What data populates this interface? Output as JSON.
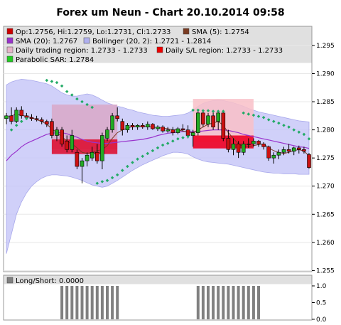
{
  "chart_data": {
    "type": "candlestick",
    "title": "Forex um Neun - Chart 20.10.2014 09:58",
    "legend": {
      "placement": "top",
      "entries": [
        {
          "label": "Op:1.2756, Hi:1.2759, Lo:1.2731, Cl:1.2733",
          "color": "#cc0000"
        },
        {
          "label": "SMA (5): 1.2754",
          "color": "#7a3b22"
        },
        {
          "label": "SMA (20): 1.2767",
          "color": "#9933cc"
        },
        {
          "label": "Bollinger (20, 2): 1.2721 - 1.2814",
          "color": "#b0b0f0"
        },
        {
          "label": "Daily trading region: 1.2733 - 1.2733",
          "color": "#e6b4c8"
        },
        {
          "label": "Daily S/L region: 1.2733 - 1.2733",
          "color": "#ee0000"
        },
        {
          "label": "Parabolic SAR: 1.2784",
          "color": "#22cc22"
        }
      ]
    },
    "y_axis": {
      "range": [
        1.2548,
        1.2984
      ],
      "ticks": [
        "1.295",
        "1.290",
        "1.285",
        "1.280",
        "1.275",
        "1.270",
        "1.265",
        "1.260",
        "1.255"
      ]
    },
    "regions": {
      "trading": [
        {
          "x_start": 9,
          "x_end": 22,
          "low": 1.2766,
          "high": 1.2845,
          "color": "#d9a8c8"
        },
        {
          "x_start": 37,
          "x_end": 49,
          "low": 1.2778,
          "high": 1.2855,
          "color": "#f9c0c8"
        }
      ],
      "stoploss": [
        {
          "x_start": 9,
          "x_end": 22,
          "low": 1.2757,
          "high": 1.2783,
          "color": "#dd1133"
        },
        {
          "x_start": 37,
          "x_end": 49,
          "low": 1.2767,
          "high": 1.279,
          "color": "#ee0022"
        }
      ]
    },
    "candles": [
      [
        1.282,
        1.283,
        1.281,
        1.2825
      ],
      [
        1.2825,
        1.284,
        1.281,
        1.2815
      ],
      [
        1.2815,
        1.284,
        1.2812,
        1.2835
      ],
      [
        1.2835,
        1.2842,
        1.282,
        1.2825
      ],
      [
        1.2825,
        1.283,
        1.2818,
        1.2822
      ],
      [
        1.2822,
        1.2828,
        1.2816,
        1.282
      ],
      [
        1.282,
        1.2825,
        1.2815,
        1.2818
      ],
      [
        1.2818,
        1.2822,
        1.281,
        1.2815
      ],
      [
        1.2815,
        1.2818,
        1.2805,
        1.281
      ],
      [
        1.2815,
        1.282,
        1.2785,
        1.279
      ],
      [
        1.279,
        1.2805,
        1.278,
        1.28
      ],
      [
        1.28,
        1.2805,
        1.277,
        1.2775
      ],
      [
        1.278,
        1.279,
        1.276,
        1.2765
      ],
      [
        1.2765,
        1.28,
        1.276,
        1.279
      ],
      [
        1.276,
        1.2765,
        1.273,
        1.2735
      ],
      [
        1.2735,
        1.275,
        1.2705,
        1.2745
      ],
      [
        1.2745,
        1.276,
        1.2735,
        1.2755
      ],
      [
        1.275,
        1.277,
        1.2745,
        1.276
      ],
      [
        1.276,
        1.2775,
        1.274,
        1.2745
      ],
      [
        1.2745,
        1.2795,
        1.273,
        1.279
      ],
      [
        1.2785,
        1.2805,
        1.278,
        1.28
      ],
      [
        1.28,
        1.283,
        1.2795,
        1.2825
      ],
      [
        1.2825,
        1.284,
        1.2815,
        1.282
      ],
      [
        1.2815,
        1.282,
        1.279,
        1.28
      ],
      [
        1.28,
        1.2812,
        1.2795,
        1.2808
      ],
      [
        1.2808,
        1.2812,
        1.28,
        1.2805
      ],
      [
        1.2805,
        1.281,
        1.28,
        1.2808
      ],
      [
        1.2808,
        1.2812,
        1.2802,
        1.2805
      ],
      [
        1.2805,
        1.2815,
        1.28,
        1.281
      ],
      [
        1.281,
        1.2812,
        1.28,
        1.2802
      ],
      [
        1.2802,
        1.2808,
        1.2798,
        1.2805
      ],
      [
        1.2805,
        1.2808,
        1.2795,
        1.2798
      ],
      [
        1.2798,
        1.2805,
        1.2795,
        1.28
      ],
      [
        1.28,
        1.2805,
        1.279,
        1.2795
      ],
      [
        1.2795,
        1.2805,
        1.2792,
        1.2802
      ],
      [
        1.2802,
        1.281,
        1.2798,
        1.28
      ],
      [
        1.28,
        1.2808,
        1.2785,
        1.279
      ],
      [
        1.279,
        1.28,
        1.277,
        1.2795
      ],
      [
        1.2795,
        1.2835,
        1.279,
        1.283
      ],
      [
        1.283,
        1.2835,
        1.2805,
        1.281
      ],
      [
        1.281,
        1.283,
        1.2805,
        1.2825
      ],
      [
        1.2825,
        1.2832,
        1.28,
        1.2805
      ],
      [
        1.2815,
        1.2835,
        1.28,
        1.283
      ],
      [
        1.283,
        1.2835,
        1.278,
        1.2785
      ],
      [
        1.2785,
        1.28,
        1.276,
        1.2765
      ],
      [
        1.2765,
        1.2785,
        1.2755,
        1.2775
      ],
      [
        1.2775,
        1.278,
        1.275,
        1.276
      ],
      [
        1.276,
        1.278,
        1.2755,
        1.2775
      ],
      [
        1.2775,
        1.2785,
        1.2768,
        1.2775
      ],
      [
        1.2775,
        1.2785,
        1.277,
        1.278
      ],
      [
        1.278,
        1.2782,
        1.277,
        1.2775
      ],
      [
        1.2775,
        1.2778,
        1.2765,
        1.277
      ],
      [
        1.277,
        1.2772,
        1.2745,
        1.275
      ],
      [
        1.275,
        1.276,
        1.274,
        1.2755
      ],
      [
        1.2755,
        1.2765,
        1.2748,
        1.276
      ],
      [
        1.276,
        1.277,
        1.2755,
        1.2765
      ],
      [
        1.2765,
        1.2775,
        1.2758,
        1.2762
      ],
      [
        1.2762,
        1.277,
        1.2755,
        1.2768
      ],
      [
        1.2768,
        1.2772,
        1.2758,
        1.2765
      ],
      [
        1.2765,
        1.277,
        1.2758,
        1.2762
      ],
      [
        1.2756,
        1.2759,
        1.2731,
        1.2733
      ]
    ],
    "sma5": [
      1.2822,
      1.2825,
      1.2828,
      1.2826,
      1.2824,
      1.2822,
      1.2818,
      1.2815,
      1.281,
      1.2802,
      1.2795,
      1.2788,
      1.278,
      1.2775,
      1.2768,
      1.276,
      1.2758,
      1.276,
      1.2763,
      1.2765,
      1.2772,
      1.2785,
      1.2795,
      1.28,
      1.2803,
      1.2806,
      1.2806,
      1.2806,
      1.2806,
      1.2805,
      1.2804,
      1.2803,
      1.2802,
      1.28,
      1.28,
      1.2798,
      1.2796,
      1.2795,
      1.28,
      1.2805,
      1.281,
      1.2812,
      1.2815,
      1.2808,
      1.2795,
      1.2785,
      1.2775,
      1.277,
      1.277,
      1.2772,
      1.2774,
      1.2775,
      1.2768,
      1.2763,
      1.276,
      1.2758,
      1.276,
      1.2763,
      1.2765,
      1.2762,
      1.2754
    ],
    "sma20": [
      1.2745,
      1.2755,
      1.2762,
      1.277,
      1.2776,
      1.278,
      1.2784,
      1.2788,
      1.2792,
      1.2794,
      1.2795,
      1.2795,
      1.2793,
      1.279,
      1.2787,
      1.2783,
      1.278,
      1.2778,
      1.2777,
      1.2776,
      1.2776,
      1.2777,
      1.2778,
      1.2779,
      1.278,
      1.2781,
      1.2782,
      1.2783,
      1.2785,
      1.2787,
      1.279,
      1.2792,
      1.2794,
      1.2795,
      1.2796,
      1.2797,
      1.2797,
      1.2797,
      1.2797,
      1.2798,
      1.2799,
      1.28,
      1.28,
      1.28,
      1.2799,
      1.2797,
      1.2795,
      1.2792,
      1.279,
      1.2788,
      1.2786,
      1.2784,
      1.2782,
      1.278,
      1.2778,
      1.2776,
      1.2774,
      1.2772,
      1.277,
      1.2769,
      1.2767
    ],
    "bb_upper": [
      1.288,
      1.2885,
      1.2888,
      1.289,
      1.2889,
      1.2888,
      1.2886,
      1.2884,
      1.2882,
      1.2878,
      1.2872,
      1.2866,
      1.2862,
      1.286,
      1.286,
      1.2862,
      1.2864,
      1.2862,
      1.2858,
      1.2853,
      1.2848,
      1.2845,
      1.2842,
      1.284,
      1.2837,
      1.2835,
      1.2832,
      1.283,
      1.2828,
      1.2826,
      1.2825,
      1.2824,
      1.2824,
      1.2825,
      1.2826,
      1.2827,
      1.283,
      1.2835,
      1.2842,
      1.2847,
      1.285,
      1.2852,
      1.2853,
      1.2852,
      1.285,
      1.2848,
      1.2845,
      1.2842,
      1.2838,
      1.2835,
      1.2832,
      1.283,
      1.2828,
      1.2826,
      1.2824,
      1.2822,
      1.282,
      1.2818,
      1.2816,
      1.2815,
      1.2814
    ],
    "bb_lower": [
      1.258,
      1.2615,
      1.265,
      1.2672,
      1.2688,
      1.27,
      1.2708,
      1.2714,
      1.2718,
      1.272,
      1.272,
      1.2719,
      1.2718,
      1.2716,
      1.2713,
      1.271,
      1.2706,
      1.2702,
      1.27,
      1.2698,
      1.27,
      1.2705,
      1.271,
      1.2716,
      1.2722,
      1.2728,
      1.2733,
      1.2738,
      1.2742,
      1.2746,
      1.275,
      1.2754,
      1.2757,
      1.276,
      1.276,
      1.2759,
      1.2757,
      1.2752,
      1.2748,
      1.2745,
      1.2743,
      1.2742,
      1.2741,
      1.274,
      1.2739,
      1.2737,
      1.2735,
      1.2733,
      1.2731,
      1.2729,
      1.2727,
      1.2725,
      1.2724,
      1.2723,
      1.2723,
      1.2722,
      1.2722,
      1.2722,
      1.2721,
      1.2721,
      1.2721
    ],
    "sar": [
      [
        1,
        1.28
      ],
      [
        2,
        1.2808
      ],
      [
        3,
        1.2815
      ],
      [
        4,
        1.282
      ],
      [
        8,
        1.2888
      ],
      [
        9,
        1.2886
      ],
      [
        10,
        1.2884
      ],
      [
        11,
        1.2878
      ],
      [
        12,
        1.2868
      ],
      [
        13,
        1.2862
      ],
      [
        14,
        1.2855
      ],
      [
        15,
        1.285
      ],
      [
        16,
        1.2845
      ],
      [
        17,
        1.284
      ],
      [
        18,
        1.2705
      ],
      [
        19,
        1.2708
      ],
      [
        20,
        1.271
      ],
      [
        21,
        1.2715
      ],
      [
        22,
        1.272
      ],
      [
        23,
        1.2728
      ],
      [
        24,
        1.2735
      ],
      [
        25,
        1.2742
      ],
      [
        26,
        1.2748
      ],
      [
        27,
        1.2753
      ],
      [
        28,
        1.2758
      ],
      [
        29,
        1.2763
      ],
      [
        30,
        1.2768
      ],
      [
        31,
        1.2773
      ],
      [
        32,
        1.2776
      ],
      [
        33,
        1.278
      ],
      [
        34,
        1.2784
      ],
      [
        35,
        1.2786
      ],
      [
        36,
        1.2788
      ],
      [
        37,
        1.2835
      ],
      [
        38,
        1.2835
      ],
      [
        39,
        1.2834
      ],
      [
        40,
        1.2834
      ],
      [
        41,
        1.2833
      ],
      [
        42,
        1.2833
      ],
      [
        43,
        1.2833
      ],
      [
        47,
        1.283
      ],
      [
        48,
        1.2828
      ],
      [
        49,
        1.2826
      ],
      [
        50,
        1.2824
      ],
      [
        51,
        1.2822
      ],
      [
        52,
        1.2818
      ],
      [
        53,
        1.2815
      ],
      [
        54,
        1.2812
      ],
      [
        55,
        1.2808
      ],
      [
        56,
        1.2805
      ],
      [
        57,
        1.28
      ],
      [
        58,
        1.2796
      ],
      [
        59,
        1.2792
      ],
      [
        60,
        1.2784
      ]
    ],
    "subplot": {
      "label": "Long/Short: 0.0000",
      "y_ticks": [
        "1.0",
        "0.5",
        "0.0"
      ],
      "y_range": [
        0,
        1
      ],
      "values": [
        0,
        0,
        0,
        0,
        0,
        0,
        0,
        0,
        0,
        0,
        0,
        1,
        1,
        1,
        1,
        1,
        1,
        1,
        1,
        1,
        1,
        1,
        1,
        0,
        0,
        0,
        0,
        0,
        0,
        0,
        0,
        0,
        0,
        0,
        0,
        0,
        0,
        0,
        1,
        1,
        1,
        1,
        1,
        1,
        1,
        1,
        1,
        1,
        1,
        1,
        1,
        0,
        0,
        0,
        0,
        0,
        0,
        0,
        0,
        0,
        0
      ]
    }
  }
}
